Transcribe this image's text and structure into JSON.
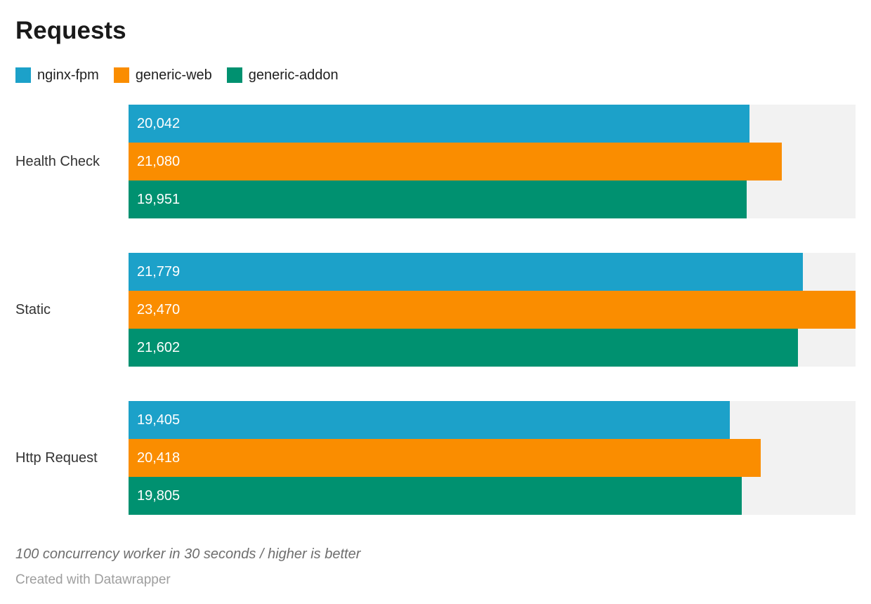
{
  "title": "Requests",
  "colors": {
    "background": "#ffffff",
    "bar_track": "#f2f2f2",
    "series_blue": "#1ca1c9",
    "series_orange": "#fa8d00",
    "series_teal": "#009170",
    "title_text": "#1a1a1a",
    "category_text": "#333333",
    "value_text": "#ffffff",
    "note_text": "#6e6e6e",
    "credit_text": "#9e9e9e"
  },
  "legend": {
    "items": [
      {
        "label": "nginx-fpm",
        "color": "#1ca1c9"
      },
      {
        "label": "generic-web",
        "color": "#fa8d00"
      },
      {
        "label": "generic-addon",
        "color": "#009170"
      }
    ]
  },
  "chart_data": {
    "type": "bar",
    "orientation": "horizontal",
    "title": "Requests",
    "categories": [
      "Health Check",
      "Static",
      "Http Request"
    ],
    "series": [
      {
        "name": "nginx-fpm",
        "color": "#1ca1c9",
        "values": [
          20042,
          21779,
          19405
        ],
        "labels": [
          "20,042",
          "21,779",
          "19,405"
        ]
      },
      {
        "name": "generic-web",
        "color": "#fa8d00",
        "values": [
          21080,
          23470,
          20418
        ],
        "labels": [
          "21,080",
          "23,470",
          "20,418"
        ]
      },
      {
        "name": "generic-addon",
        "color": "#009170",
        "values": [
          19951,
          21602,
          19805
        ],
        "labels": [
          "19,951",
          "21,602",
          "19,805"
        ]
      }
    ],
    "xlim": [
      0,
      23470
    ],
    "value_labels_inside": true,
    "grid": false,
    "legend_position": "top"
  },
  "footer": {
    "note": "100 concurrency worker in 30 seconds / higher is better",
    "credit": "Created with Datawrapper"
  }
}
